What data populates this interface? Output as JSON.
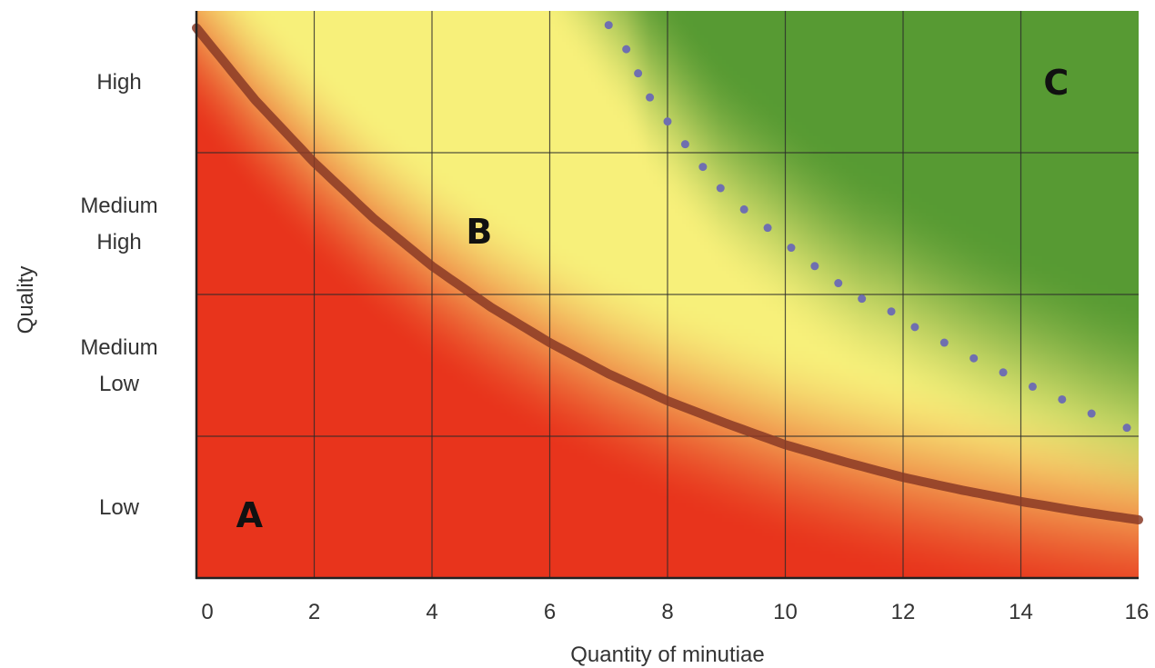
{
  "chart_data": {
    "type": "area",
    "title": "",
    "xlabel": "Quantity of minutiae",
    "ylabel": "Quality",
    "xlim": [
      0,
      16
    ],
    "ylim": [
      0,
      4
    ],
    "grid": true,
    "x_ticks": [
      0,
      2,
      4,
      6,
      8,
      10,
      12,
      14,
      16
    ],
    "y_categories": [
      {
        "lines": [
          "Low"
        ],
        "value": 0.5
      },
      {
        "lines": [
          "Medium",
          "Low"
        ],
        "value": 1.5
      },
      {
        "lines": [
          "Medium",
          "High"
        ],
        "value": 2.5
      },
      {
        "lines": [
          "High"
        ],
        "value": 3.5
      }
    ],
    "zone_colors": {
      "low": "#e8341c",
      "mid": "#f7f07a",
      "high": "#4f962f"
    },
    "curve_color": "#8a3a26",
    "dotted_color": "#6f6fb0",
    "curve": {
      "x": [
        0,
        1,
        2,
        3,
        4,
        5,
        6,
        7,
        8,
        9,
        10,
        11,
        12,
        13,
        14,
        15,
        16
      ],
      "y": [
        3.88,
        3.37,
        2.93,
        2.54,
        2.2,
        1.91,
        1.66,
        1.44,
        1.25,
        1.09,
        0.94,
        0.82,
        0.71,
        0.62,
        0.54,
        0.47,
        0.41
      ]
    },
    "dotted_line": {
      "x": [
        7.0,
        7.3,
        7.5,
        7.7,
        8.0,
        8.3,
        8.6,
        8.9,
        9.3,
        9.7,
        10.1,
        10.5,
        10.9,
        11.3,
        11.8,
        12.2,
        12.7,
        13.2,
        13.7,
        14.2,
        14.7,
        15.2,
        15.8
      ],
      "y": [
        3.9,
        3.73,
        3.56,
        3.39,
        3.22,
        3.06,
        2.9,
        2.75,
        2.6,
        2.47,
        2.33,
        2.2,
        2.08,
        1.97,
        1.88,
        1.77,
        1.66,
        1.55,
        1.45,
        1.35,
        1.26,
        1.16,
        1.06
      ]
    },
    "annotations": [
      {
        "text": "A",
        "x": 0.9,
        "y": 0.45
      },
      {
        "text": "B",
        "x": 4.8,
        "y": 2.45
      },
      {
        "text": "C",
        "x": 14.6,
        "y": 3.5
      }
    ]
  }
}
